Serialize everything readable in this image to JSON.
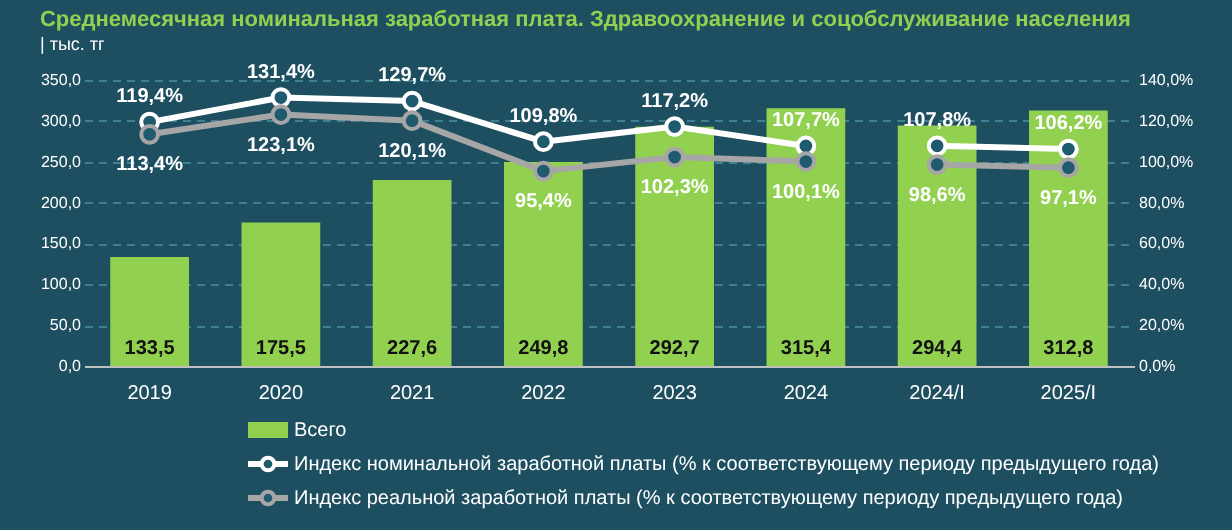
{
  "chart_data": {
    "type": "bar",
    "title": "Среднемесячная номинальная заработная плата. Здравоохранение и соцобслуживание населения",
    "subtitle": "| тыс. тг",
    "categories": [
      "2019",
      "2020",
      "2021",
      "2022",
      "2023",
      "2024",
      "2024/I",
      "2025/I"
    ],
    "series": [
      {
        "name": "Всего",
        "color": "#92d050",
        "values": [
          133.5,
          175.5,
          227.6,
          249.8,
          292.7,
          315.4,
          294.4,
          312.8
        ],
        "value_labels": [
          "133,5",
          "175,5",
          "227,6",
          "249,8",
          "292,7",
          "315,4",
          "294,4",
          "312,8"
        ]
      },
      {
        "name": "Индекс номинальной заработной платы (% к соответствующему периоду предыдущего года)",
        "type": "line",
        "axis": "y2",
        "color": "#ffffff",
        "values": [
          119.4,
          131.4,
          129.7,
          109.8,
          117.2,
          107.7,
          null,
          null
        ],
        "value_labels": [
          "119,4%",
          "131,4%",
          "129,7%",
          "109,8%",
          "117,2%",
          "107,7%",
          null,
          null
        ]
      },
      {
        "type": "line",
        "axis": "y2",
        "color": "#ffffff",
        "values": [
          null,
          null,
          null,
          null,
          null,
          null,
          107.8,
          106.2
        ],
        "value_labels": [
          null,
          null,
          null,
          null,
          null,
          null,
          "107,8%",
          "106,2%"
        ]
      },
      {
        "name": "Индекс реальной заработной платы (% к соответствующему периоду предыдущего года)",
        "type": "line",
        "axis": "y2",
        "color": "#a6a6a6",
        "values": [
          113.4,
          123.1,
          120.1,
          95.4,
          102.3,
          100.1,
          null,
          null
        ],
        "value_labels": [
          "113,4%",
          "123,1%",
          "120,1%",
          "95,4%",
          "102,3%",
          "100,1%",
          null,
          null
        ]
      },
      {
        "type": "line",
        "axis": "y2",
        "color": "#a6a6a6",
        "values": [
          null,
          null,
          null,
          null,
          null,
          null,
          98.6,
          97.1
        ],
        "value_labels": [
          null,
          null,
          null,
          null,
          null,
          null,
          "98,6%",
          "97,1%"
        ]
      }
    ],
    "ylim": [
      0,
      350
    ],
    "yticks": [
      {
        "value": 0,
        "label": "0,0"
      },
      {
        "value": 50,
        "label": "50,0"
      },
      {
        "value": 100,
        "label": "100,0"
      },
      {
        "value": 150,
        "label": "150,0"
      },
      {
        "value": 200,
        "label": "200,0"
      },
      {
        "value": 250,
        "label": "250,0"
      },
      {
        "value": 300,
        "label": "300,0"
      },
      {
        "value": 350,
        "label": "350,0"
      }
    ],
    "y2lim": [
      0,
      140
    ],
    "y2ticks": [
      {
        "value": 0,
        "label": "0,0%"
      },
      {
        "value": 20,
        "label": "20,0%"
      },
      {
        "value": 40,
        "label": "40,0%"
      },
      {
        "value": 60,
        "label": "60,0%"
      },
      {
        "value": 80,
        "label": "80,0%"
      },
      {
        "value": 100,
        "label": "100,0%"
      },
      {
        "value": 120,
        "label": "120,0%"
      },
      {
        "value": 140,
        "label": "140,0%"
      }
    ],
    "grid": "y",
    "legend": "bottom",
    "marker": "circle",
    "line_style": "solid"
  }
}
